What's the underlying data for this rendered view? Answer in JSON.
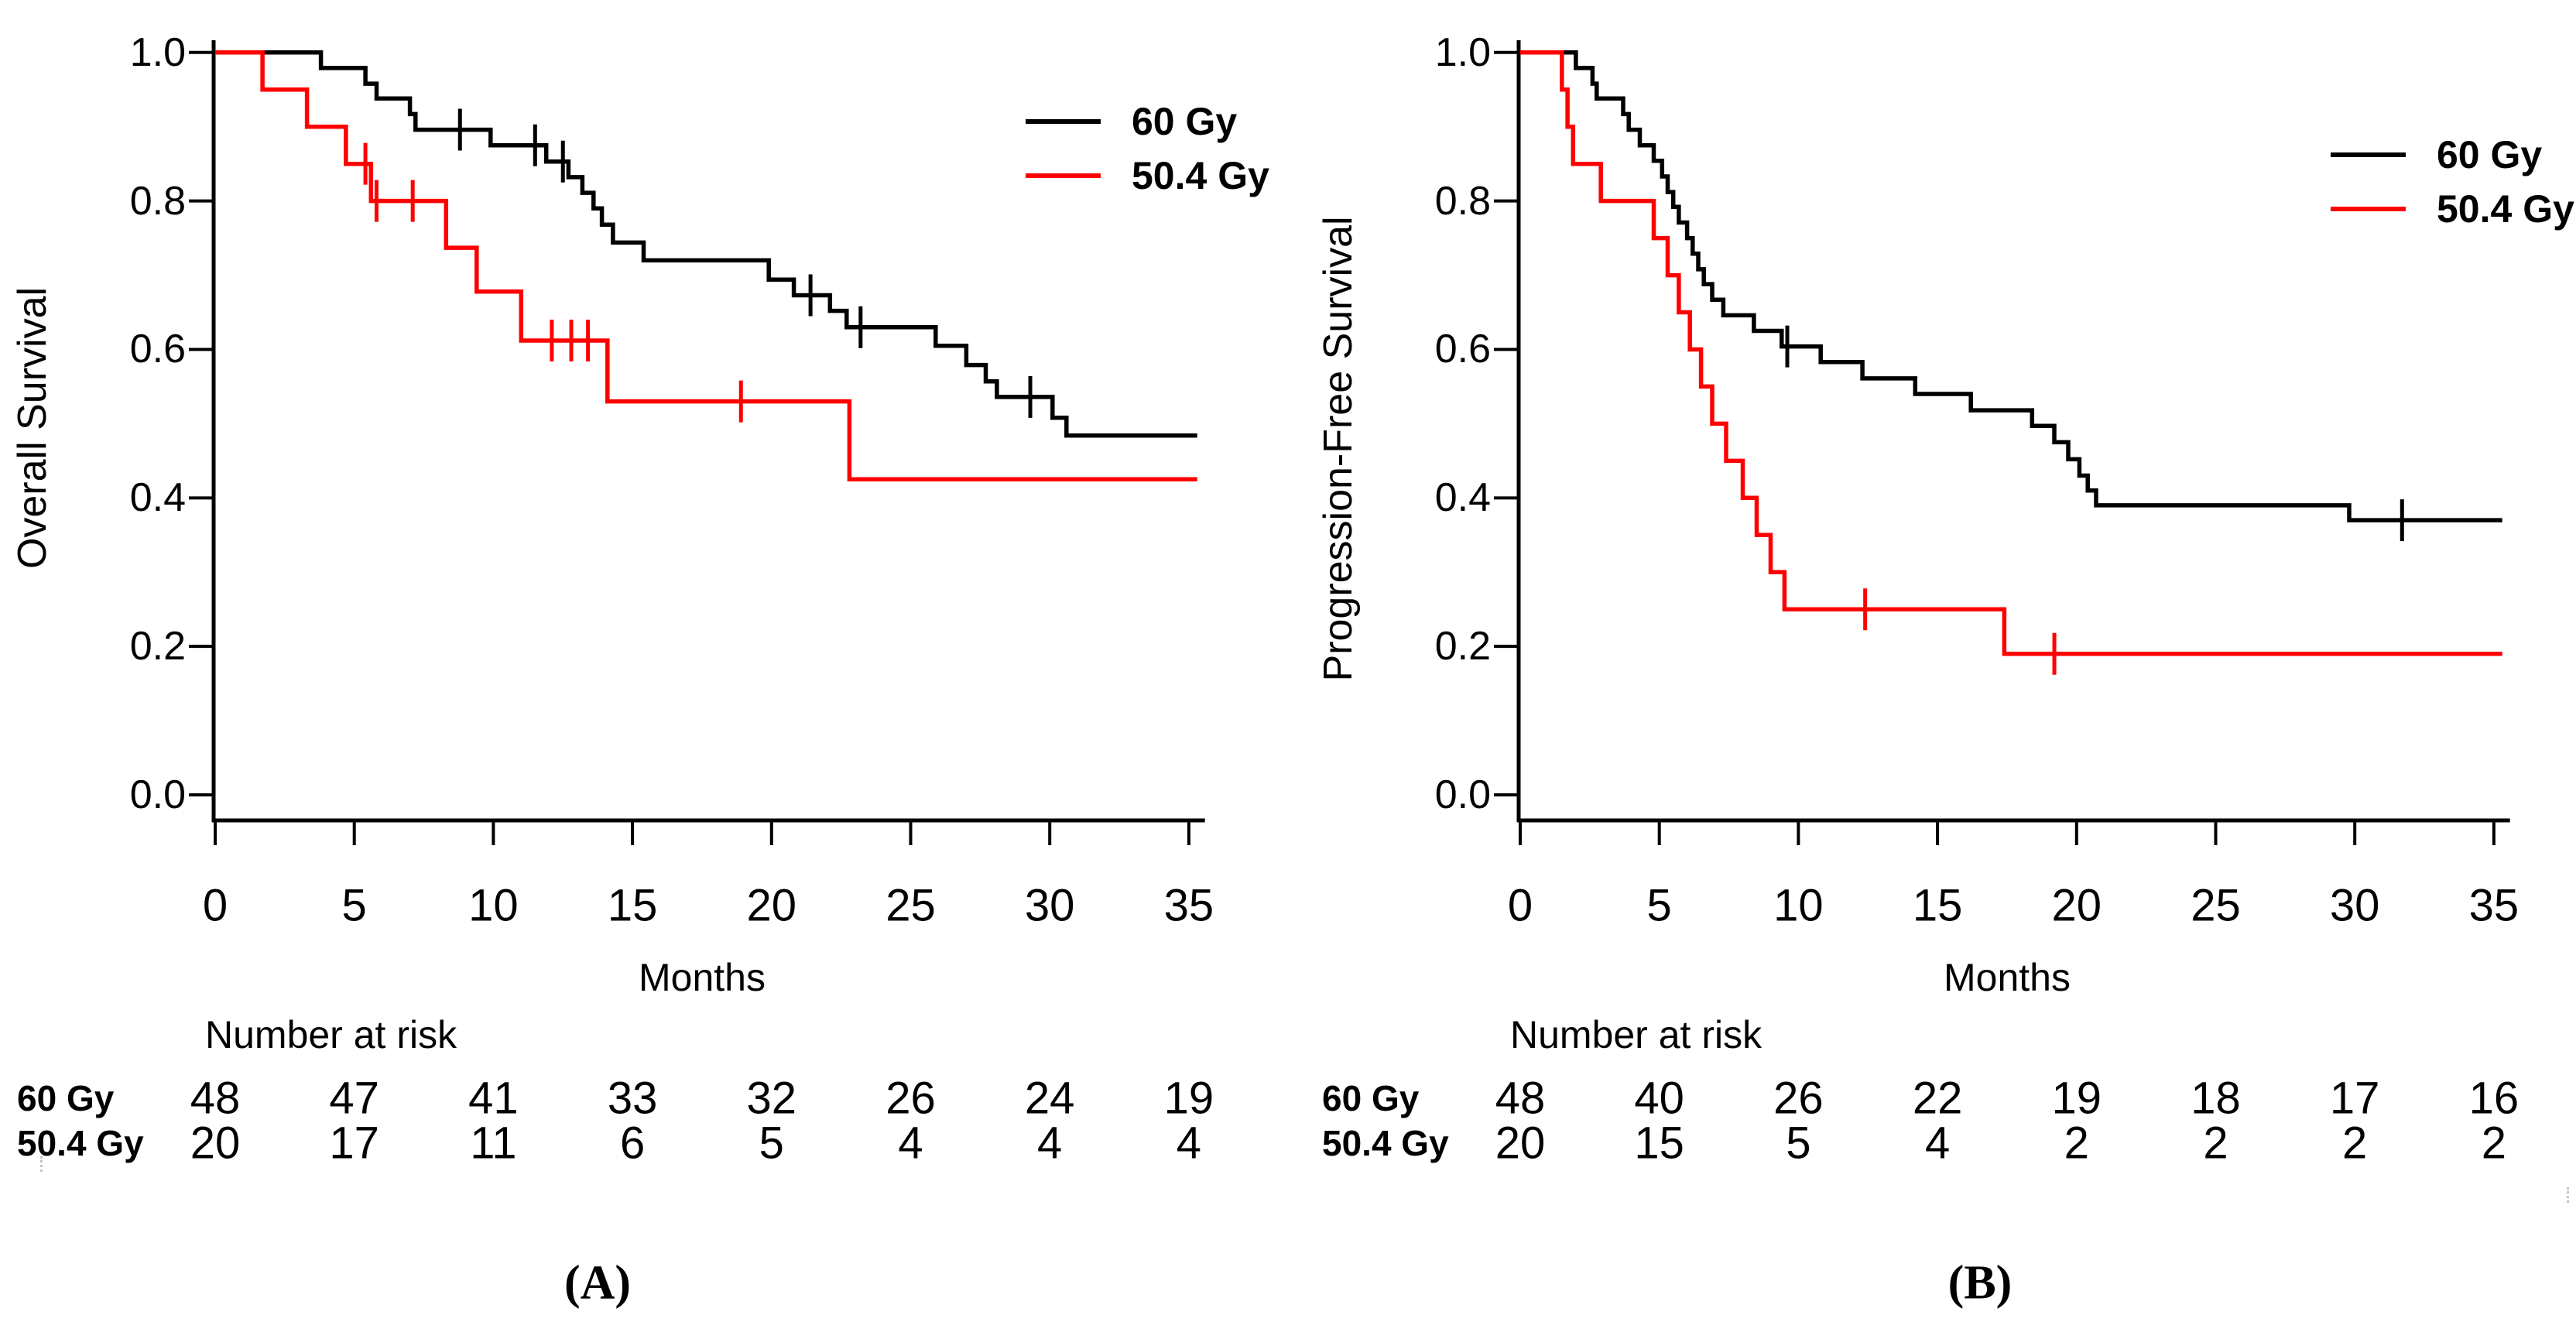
{
  "figure": {
    "description": "Kaplan-Meier survival curves comparing radiotherapy doses 60 Gy and 50.4 Gy",
    "background": "#ffffff",
    "series_colors": {
      "60 Gy": "#000000",
      "50.4 Gy": "#FF0000"
    }
  },
  "chart_data": [
    {
      "panel": "A",
      "type": "line",
      "subtype": "kaplan-meier-step",
      "title": "",
      "xlabel": "Months",
      "ylabel": "Overall Survival",
      "caption": "(A)",
      "xlim": [
        0,
        35
      ],
      "ylim": [
        0.0,
        1.0
      ],
      "grid": false,
      "legend_position": "top-right",
      "x_ticks": [
        0,
        5,
        10,
        15,
        20,
        25,
        30,
        35
      ],
      "y_ticks": [
        {
          "label": "1.0",
          "value": 1.0
        },
        {
          "label": "0.8",
          "value": 0.8
        },
        {
          "label": "0.6",
          "value": 0.6
        },
        {
          "label": "0.4",
          "value": 0.4
        },
        {
          "label": "0.2",
          "value": 0.2
        },
        {
          "label": "0.0",
          "value": 0.0
        }
      ],
      "legend": [
        {
          "label": "60 Gy",
          "color": "#000000"
        },
        {
          "label": "50.4 Gy",
          "color": "#FF0000"
        }
      ],
      "series": [
        {
          "name": "60 Gy",
          "color": "#000000",
          "steps": [
            [
              0,
              1.0
            ],
            [
              3.8,
              0.979
            ],
            [
              5.4,
              0.958
            ],
            [
              5.8,
              0.938
            ],
            [
              7.0,
              0.917
            ],
            [
              7.2,
              0.896
            ],
            [
              9.9,
              0.875
            ],
            [
              11.9,
              0.853
            ],
            [
              12.7,
              0.832
            ],
            [
              13.2,
              0.811
            ],
            [
              13.6,
              0.79
            ],
            [
              13.9,
              0.768
            ],
            [
              14.3,
              0.744
            ],
            [
              15.4,
              0.72
            ],
            [
              19.9,
              0.694
            ],
            [
              20.8,
              0.673
            ],
            [
              22.1,
              0.652
            ],
            [
              22.7,
              0.63
            ],
            [
              25.9,
              0.605
            ],
            [
              27.0,
              0.579
            ],
            [
              27.7,
              0.557
            ],
            [
              28.1,
              0.536
            ],
            [
              30.1,
              0.508
            ],
            [
              30.6,
              0.484
            ]
          ],
          "censor_marks": [
            [
              8.8,
              0.896
            ],
            [
              11.5,
              0.875
            ],
            [
              12.5,
              0.853
            ],
            [
              21.4,
              0.673
            ],
            [
              23.2,
              0.63
            ],
            [
              29.3,
              0.536
            ]
          ]
        },
        {
          "name": "50.4 Gy",
          "color": "#FF0000",
          "steps": [
            [
              0,
              1.0
            ],
            [
              1.7,
              0.95
            ],
            [
              3.3,
              0.9
            ],
            [
              4.7,
              0.85
            ],
            [
              5.6,
              0.8
            ],
            [
              8.3,
              0.737
            ],
            [
              9.4,
              0.678
            ],
            [
              11.0,
              0.612
            ],
            [
              14.1,
              0.53
            ],
            [
              22.8,
              0.425
            ]
          ],
          "censor_marks": [
            [
              5.4,
              0.85
            ],
            [
              5.8,
              0.8
            ],
            [
              7.1,
              0.8
            ],
            [
              12.1,
              0.612
            ],
            [
              12.8,
              0.612
            ],
            [
              13.4,
              0.612
            ],
            [
              18.9,
              0.53
            ]
          ]
        }
      ],
      "risk_table": {
        "heading": "Number at risk",
        "time_points": [
          0,
          5,
          10,
          15,
          20,
          25,
          30,
          35
        ],
        "rows": [
          {
            "label": "60 Gy",
            "values": [
              48,
              47,
              41,
              33,
              32,
              26,
              24,
              19
            ]
          },
          {
            "label": "50.4 Gy",
            "values": [
              20,
              17,
              11,
              6,
              5,
              4,
              4,
              4
            ]
          }
        ]
      }
    },
    {
      "panel": "B",
      "type": "line",
      "subtype": "kaplan-meier-step",
      "title": "",
      "xlabel": "Months",
      "ylabel": "Progression-Free Survival",
      "caption": "(B)",
      "xlim": [
        0,
        35
      ],
      "ylim": [
        0.0,
        1.0
      ],
      "grid": false,
      "legend_position": "top-right",
      "x_ticks": [
        0,
        5,
        10,
        15,
        20,
        25,
        30,
        35
      ],
      "y_ticks": [
        {
          "label": "1.0",
          "value": 1.0
        },
        {
          "label": "0.8",
          "value": 0.8
        },
        {
          "label": "0.6",
          "value": 0.6
        },
        {
          "label": "0.4",
          "value": 0.4
        },
        {
          "label": "0.2",
          "value": 0.2
        },
        {
          "label": "0.0",
          "value": 0.0
        }
      ],
      "legend": [
        {
          "label": "60 Gy",
          "color": "#000000"
        },
        {
          "label": "50.4 Gy",
          "color": "#FF0000"
        }
      ],
      "series": [
        {
          "name": "60 Gy",
          "color": "#000000",
          "steps": [
            [
              0,
              1.0
            ],
            [
              2.0,
              0.979
            ],
            [
              2.6,
              0.958
            ],
            [
              2.75,
              0.938
            ],
            [
              3.7,
              0.917
            ],
            [
              3.9,
              0.896
            ],
            [
              4.3,
              0.875
            ],
            [
              4.8,
              0.854
            ],
            [
              5.1,
              0.833
            ],
            [
              5.3,
              0.812
            ],
            [
              5.5,
              0.792
            ],
            [
              5.7,
              0.771
            ],
            [
              6.0,
              0.75
            ],
            [
              6.2,
              0.729
            ],
            [
              6.4,
              0.708
            ],
            [
              6.6,
              0.688
            ],
            [
              6.9,
              0.667
            ],
            [
              7.3,
              0.646
            ],
            [
              8.4,
              0.625
            ],
            [
              9.4,
              0.604
            ],
            [
              10.8,
              0.583
            ],
            [
              12.3,
              0.561
            ],
            [
              14.2,
              0.54
            ],
            [
              16.2,
              0.518
            ],
            [
              18.4,
              0.497
            ],
            [
              19.2,
              0.475
            ],
            [
              19.7,
              0.452
            ],
            [
              20.1,
              0.43
            ],
            [
              20.4,
              0.41
            ],
            [
              20.7,
              0.39
            ],
            [
              29.8,
              0.37
            ]
          ],
          "censor_marks": [
            [
              9.6,
              0.604
            ],
            [
              31.7,
              0.37
            ]
          ]
        },
        {
          "name": "50.4 Gy",
          "color": "#FF0000",
          "steps": [
            [
              0,
              1.0
            ],
            [
              1.5,
              0.95
            ],
            [
              1.7,
              0.9
            ],
            [
              1.9,
              0.85
            ],
            [
              2.9,
              0.8
            ],
            [
              4.8,
              0.75
            ],
            [
              5.3,
              0.7
            ],
            [
              5.7,
              0.65
            ],
            [
              6.1,
              0.6
            ],
            [
              6.5,
              0.55
            ],
            [
              6.9,
              0.5
            ],
            [
              7.4,
              0.45
            ],
            [
              8.0,
              0.4
            ],
            [
              8.5,
              0.35
            ],
            [
              9.0,
              0.3
            ],
            [
              9.5,
              0.25
            ],
            [
              17.4,
              0.19
            ]
          ],
          "censor_marks": [
            [
              12.4,
              0.25
            ],
            [
              19.2,
              0.19
            ]
          ]
        }
      ],
      "risk_table": {
        "heading": "Number at risk",
        "time_points": [
          0,
          5,
          10,
          15,
          20,
          25,
          30,
          35
        ],
        "rows": [
          {
            "label": "60 Gy",
            "values": [
              48,
              40,
              26,
              22,
              19,
              18,
              17,
              16
            ]
          },
          {
            "label": "50.4 Gy",
            "values": [
              20,
              15,
              5,
              4,
              2,
              2,
              2,
              2
            ]
          }
        ]
      }
    }
  ]
}
